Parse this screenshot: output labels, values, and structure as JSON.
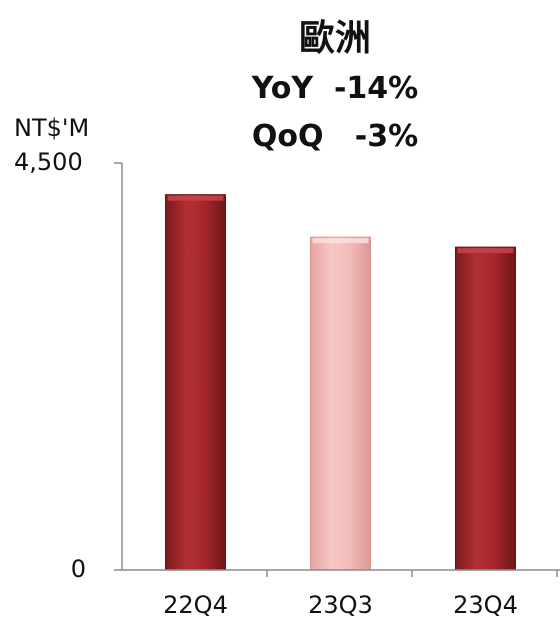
{
  "chart_data": {
    "type": "bar",
    "title": "歐洲",
    "subtitle": [
      "YoY  -14%",
      "QoQ   -3%"
    ],
    "ylabel": "NT$'M",
    "ylim": [
      0,
      4500
    ],
    "ytick_labels": [
      "4,500",
      "0"
    ],
    "grid": false,
    "categories": [
      "22Q4",
      "23Q3",
      "23Q4"
    ],
    "values": [
      4150,
      3680,
      3570
    ],
    "colors": [
      "#a0262a",
      "#f2b8b6",
      "#a0262a"
    ]
  }
}
